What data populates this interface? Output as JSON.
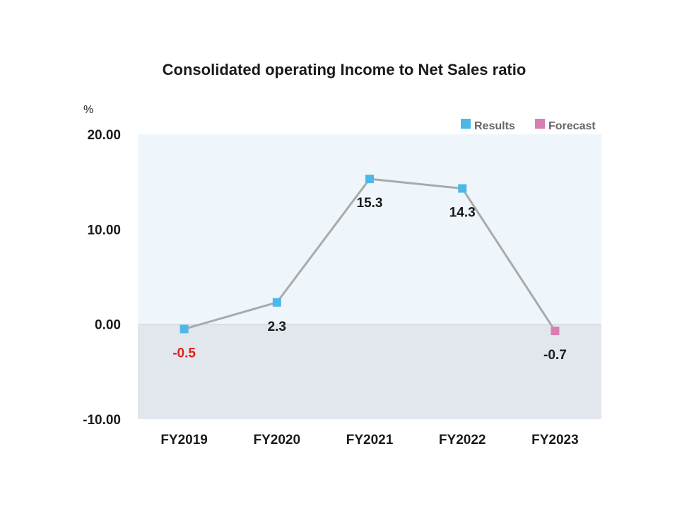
{
  "chart_data": {
    "type": "line",
    "title": "Consolidated operating Income to Net Sales ratio",
    "unit": "%",
    "categories": [
      "FY2019",
      "FY2020",
      "FY2021",
      "FY2022",
      "FY2023"
    ],
    "values": [
      -0.5,
      2.3,
      15.3,
      14.3,
      -0.7
    ],
    "data_labels": [
      "-0.5",
      "2.3",
      "15.3",
      "14.3",
      "-0.7"
    ],
    "point_kind": [
      "Results",
      "Results",
      "Results",
      "Results",
      "Forecast"
    ],
    "y_ticks": [
      "20.00",
      "10.00",
      "0.00",
      "-10.00"
    ],
    "ylim": [
      -10,
      20
    ],
    "legend": {
      "position": "top-right",
      "entries": [
        {
          "label": "Results",
          "color": "#4db8e8"
        },
        {
          "label": "Forecast",
          "color": "#d77fb3"
        }
      ]
    },
    "colors": {
      "line": "#aaaaaa",
      "positive_band": "#eef5fb",
      "negative_band": "#e2e7ee",
      "negative_label": "#e02020",
      "label": "#1a1a1a"
    }
  }
}
